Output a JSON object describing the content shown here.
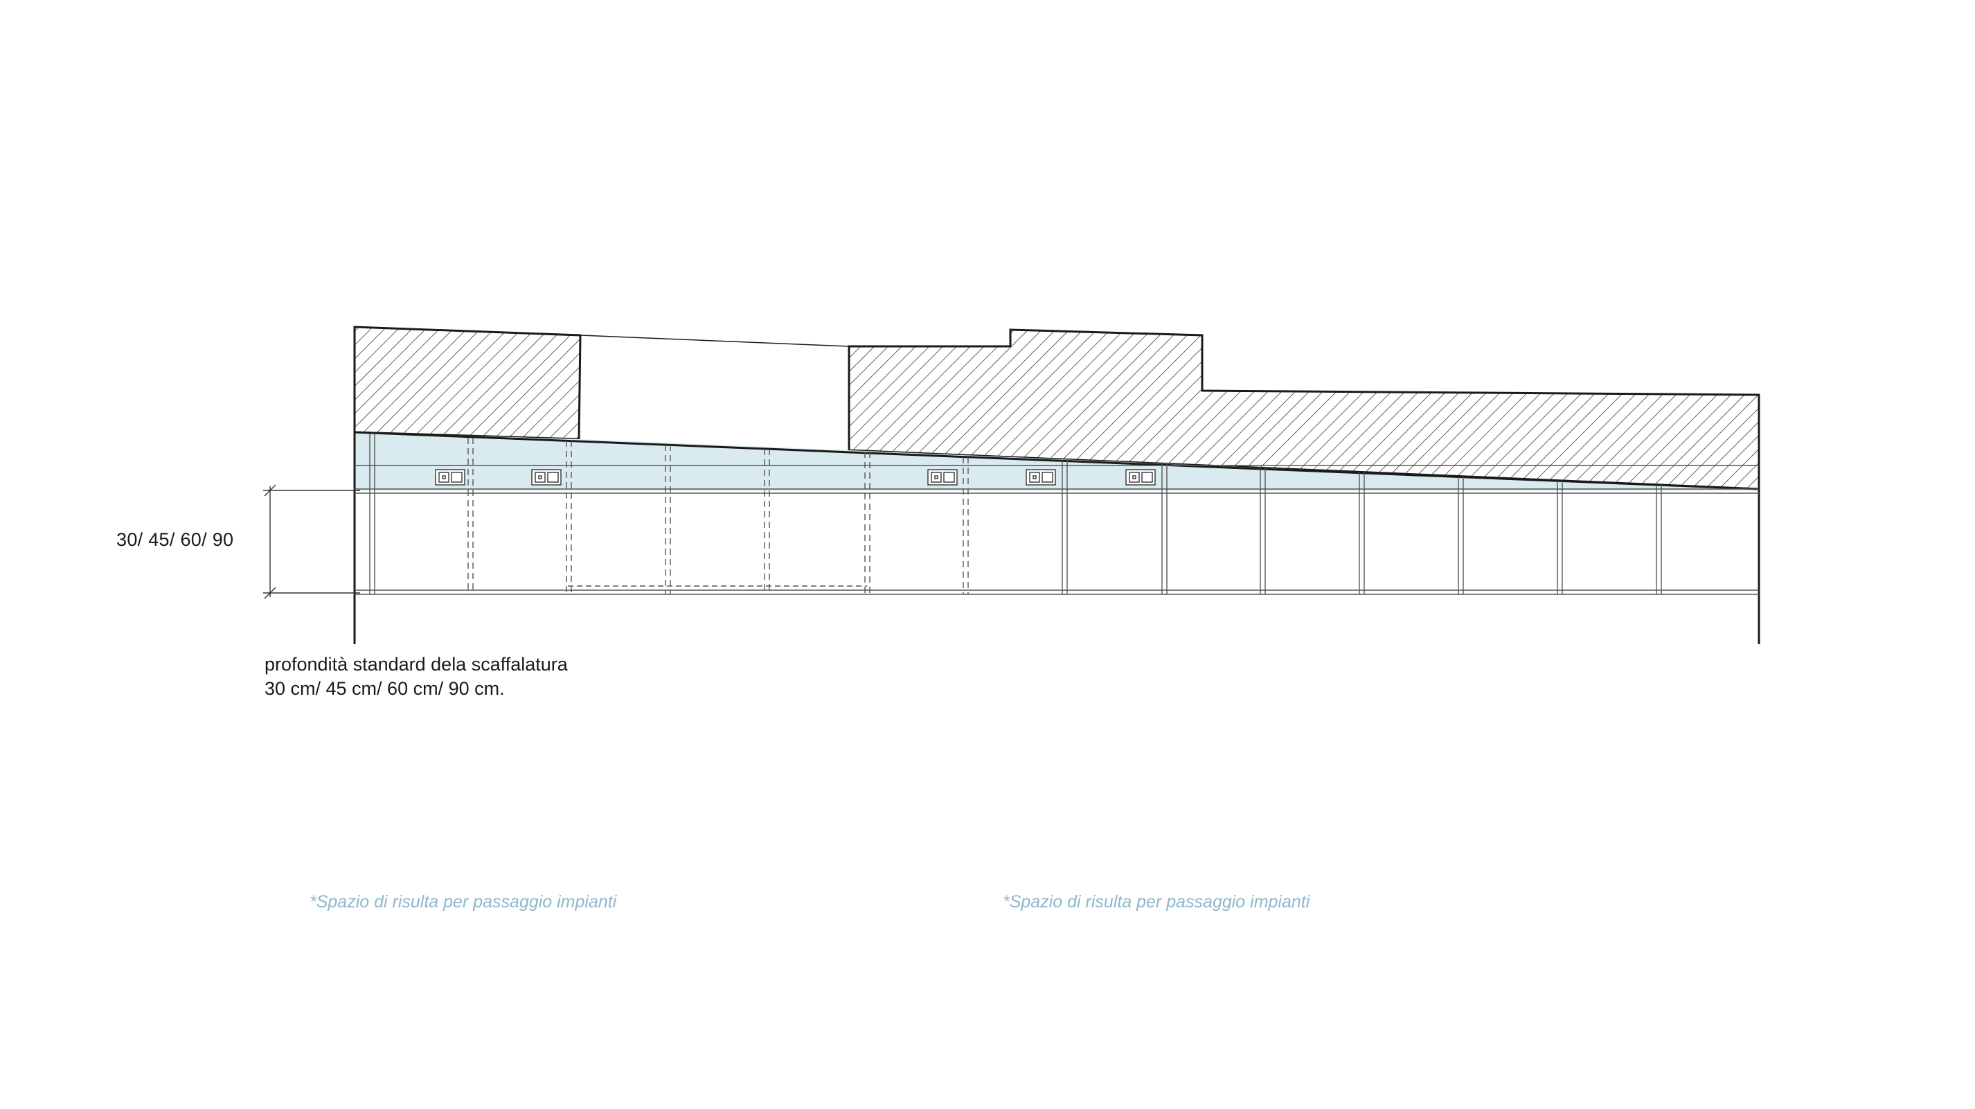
{
  "dimension_label": "30/ 45/ 60/ 90",
  "depth_note": {
    "line1": "profondità standard dela scaffalatura",
    "line2": "30 cm/ 45 cm/ 60 cm/ 90 cm."
  },
  "service_space_notes": [
    "*Spazio di risulta per passaggio impianti",
    "*Spazio di risulta per passaggio impianti"
  ],
  "colors": {
    "line": "#1a1a1a",
    "service_fill": "#d9ebef",
    "note_text": "#8fb7cc",
    "hatch": "#3a3a3a"
  }
}
